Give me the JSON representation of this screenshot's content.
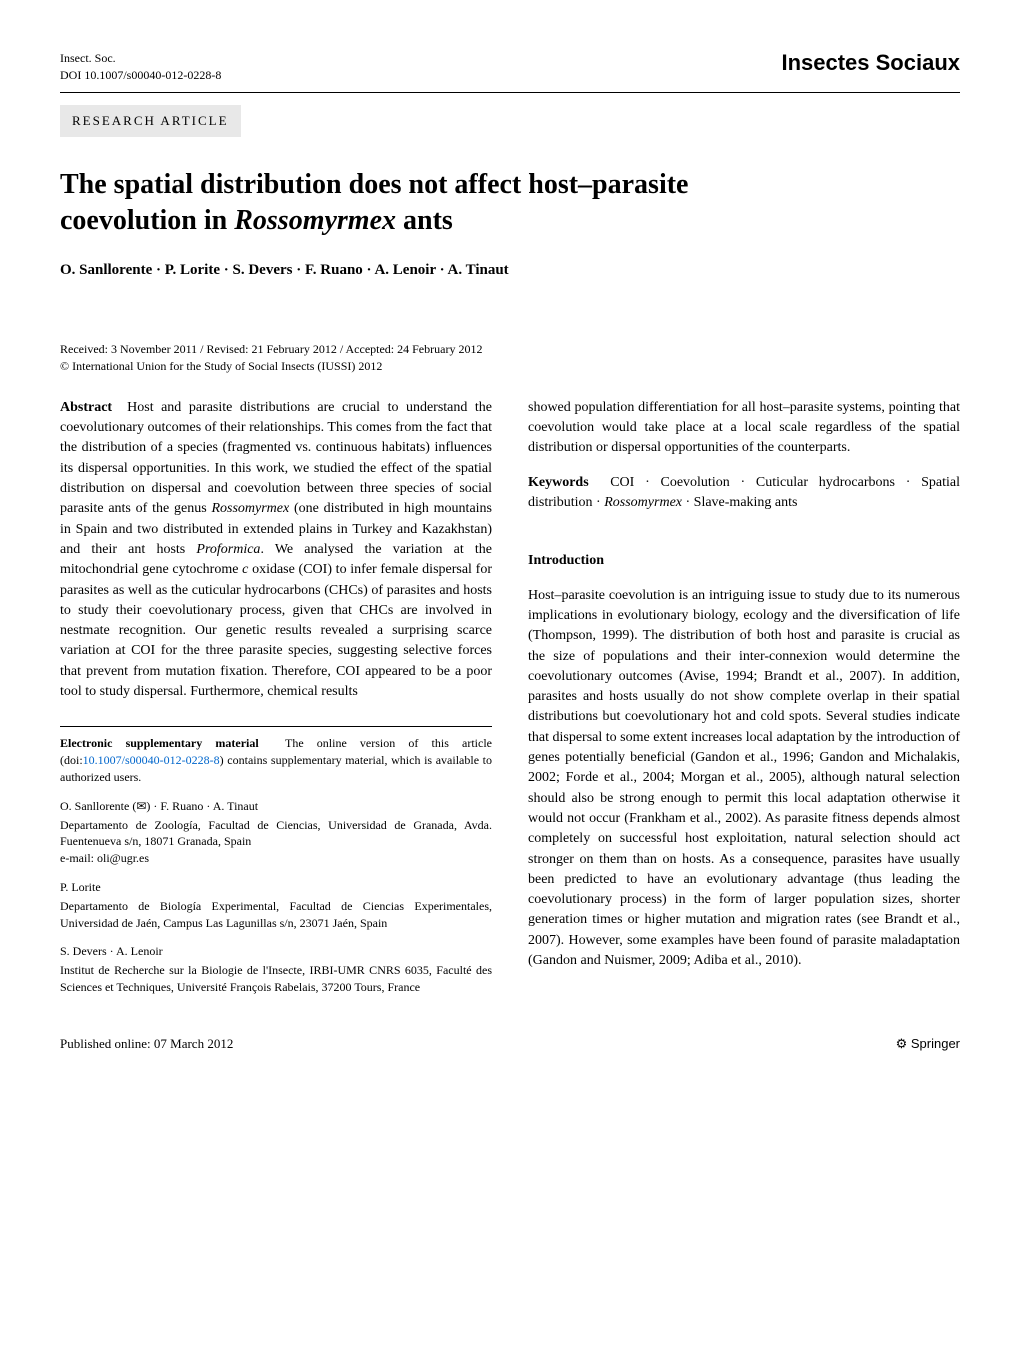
{
  "header": {
    "journal_abbrev": "Insect. Soc.",
    "doi_line": "DOI 10.1007/s00040-012-0228-8",
    "journal_logo": "Insectes Sociaux",
    "article_type": "RESEARCH ARTICLE"
  },
  "title": {
    "line1": "The spatial distribution does not affect host–parasite",
    "line2_pre": "coevolution in ",
    "line2_italic": "Rossomyrmex",
    "line2_post": " ants"
  },
  "authors": "O. Sanllorente · P. Lorite · S. Devers · F. Ruano · A. Lenoir · A. Tinaut",
  "dates": "Received: 3 November 2011 / Revised: 21 February 2012 / Accepted: 24 February 2012",
  "copyright": "© International Union for the Study of Social Insects (IUSSI) 2012",
  "abstract": {
    "label": "Abstract",
    "text1": "Host and parasite distributions are crucial to understand the coevolutionary outcomes of their relationships. This comes from the fact that the distribution of a species (fragmented vs. continuous habitats) influences its dispersal opportunities. In this work, we studied the effect of the spatial distribution on dispersal and coevolution between three species of social parasite ants of the genus ",
    "italic1": "Rossomyrmex",
    "text2": " (one distributed in high mountains in Spain and two distributed in extended plains in Turkey and Kazakhstan) and their ant hosts ",
    "italic2": "Proformica",
    "text3": ". We analysed the variation at the mitochondrial gene cytochrome ",
    "italic3": "c",
    "text4": " oxidase (COI) to infer female dispersal for parasites as well as the cuticular hydrocarbons (CHCs) of parasites and hosts to study their coevolutionary process, given that CHCs are involved in nestmate recognition. Our genetic results revealed a surprising scarce variation at COI for the three parasite species, suggesting selective forces that prevent from mutation fixation. Therefore, COI appeared to be a poor tool to study dispersal. Furthermore, chemical results",
    "text5": "showed population differentiation for all host–parasite systems, pointing that coevolution would take place at a local scale regardless of the spatial distribution or dispersal opportunities of the counterparts."
  },
  "keywords": {
    "label": "Keywords",
    "text_pre": "COI · Coevolution · Cuticular hydrocarbons · Spatial distribution · ",
    "italic": "Rossomyrmex",
    "text_post": " · Slave-making ants"
  },
  "intro": {
    "header": "Introduction",
    "p1": "Host–parasite coevolution is an intriguing issue to study due to its numerous implications in evolutionary biology, ecology and the diversification of life (Thompson, 1999). The distribution of both host and parasite is crucial as the size of populations and their inter-connexion would determine the coevolutionary outcomes (Avise, 1994; Brandt et al., 2007). In addition, parasites and hosts usually do not show complete overlap in their spatial distributions but coevolutionary hot and cold spots. Several studies indicate that dispersal to some extent increases local adaptation by the introduction of genes potentially beneficial (Gandon et al., 1996; Gandon and Michalakis, 2002; Forde et al., 2004; Morgan et al., 2005), although natural selection should also be strong enough to permit this local adaptation otherwise it would not occur (Frankham et al., 2002). As parasite fitness depends almost completely on successful host exploitation, natural selection should act stronger on them than on hosts. As a consequence, parasites have usually been predicted to have an evolutionary advantage (thus leading the coevolutionary process) in the form of larger population sizes, shorter generation times or higher mutation and migration rates (see Brandt et al., 2007). However, some examples have been found of parasite maladaptation (Gandon and Nuismer, 2009; Adiba et al., 2010)."
  },
  "supp": {
    "label": "Electronic supplementary material",
    "text1": "The online version of this article (doi:",
    "doi": "10.1007/s00040-012-0228-8",
    "text2": ") contains supplementary material, which is available to authorized users."
  },
  "affils": [
    {
      "names": "O. Sanllorente (✉) · F. Ruano · A. Tinaut",
      "lines": [
        "Departamento de Zoología, Facultad de Ciencias, Universidad de Granada, Avda. Fuentenueva s/n, 18071 Granada, Spain",
        "e-mail: oli@ugr.es"
      ]
    },
    {
      "names": "P. Lorite",
      "lines": [
        "Departamento de Biología Experimental, Facultad de Ciencias Experimentales, Universidad de Jaén, Campus Las Lagunillas s/n, 23071 Jaén, Spain"
      ]
    },
    {
      "names": "S. Devers · A. Lenoir",
      "lines": [
        "Institut de Recherche sur la Biologie de l'Insecte, IRBI-UMR CNRS 6035, Faculté des Sciences et Techniques, Université François Rabelais, 37200 Tours, France"
      ]
    }
  ],
  "footer": {
    "pub_online": "Published online: 07 March 2012",
    "springer": "Springer"
  }
}
